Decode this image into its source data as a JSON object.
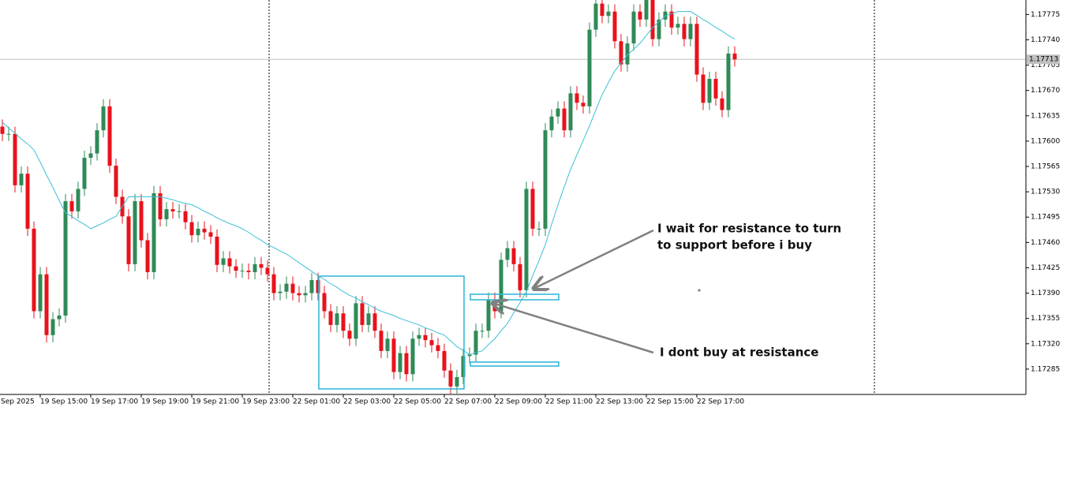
{
  "chart_data": {
    "type": "candlestick",
    "x_start_label": "Sep 2025",
    "categories": [
      null,
      null,
      null,
      null,
      null,
      null,
      "19 Sep 15:00",
      null,
      null,
      null,
      null,
      null,
      null,
      null,
      "19 Sep 17:00",
      null,
      null,
      null,
      null,
      null,
      null,
      null,
      "19 Sep 19:00",
      null,
      null,
      null,
      null,
      null,
      null,
      null,
      "19 Sep 21:00",
      null,
      null,
      null,
      null,
      null,
      null,
      null,
      "19 Sep 23:00",
      null,
      null,
      null,
      null,
      null,
      null,
      null,
      "22 Sep 01:00",
      null,
      null,
      null,
      null,
      null,
      null,
      null,
      "22 Sep 03:00",
      null,
      null,
      null,
      null,
      null,
      null,
      null,
      "22 Sep 05:00",
      null,
      null,
      null,
      null,
      null,
      null,
      null,
      "22 Sep 07:00",
      null,
      null,
      null,
      null,
      null,
      null,
      null,
      "22 Sep 09:00",
      null,
      null,
      null,
      null,
      null,
      null,
      null,
      "22 Sep 11:00",
      null,
      null,
      null,
      null,
      null,
      null,
      null,
      "22 Sep 13:00",
      null,
      null,
      null,
      null,
      null,
      null,
      null,
      "22 Sep 15:00",
      null,
      null,
      null,
      null,
      null,
      null,
      null,
      "22 Sep 17:00",
      null,
      null,
      null,
      null,
      null,
      null
    ],
    "open": [
      1.1762,
      1.1761,
      1.1761,
      1.17539,
      1.17555,
      1.17479,
      1.17365,
      1.17416,
      1.17332,
      1.17354,
      1.17359,
      1.17517,
      1.17503,
      1.17534,
      1.17577,
      1.17583,
      1.17615,
      1.17648,
      1.17566,
      1.17523,
      1.17496,
      1.1743,
      1.17517,
      1.17463,
      1.17419,
      1.17528,
      1.17492,
      1.17506,
      1.17503,
      1.17503,
      1.17488,
      1.1747,
      1.17479,
      1.17474,
      1.17468,
      1.17429,
      1.17438,
      1.17427,
      1.17421,
      1.17421,
      1.17419,
      1.1743,
      1.17425,
      1.17416,
      1.1739,
      1.17392,
      1.17403,
      1.1739,
      1.17387,
      1.1739,
      1.17408,
      1.1739,
      1.17365,
      1.17346,
      1.17362,
      1.17338,
      1.17327,
      1.17376,
      1.17346,
      1.17362,
      1.17338,
      1.1731,
      1.17327,
      1.17281,
      1.17307,
      1.17278,
      1.17327,
      1.17332,
      1.17325,
      1.17318,
      1.1731,
      1.17283,
      1.17261,
      1.17274,
      1.17303,
      1.17305,
      1.17338,
      1.17338,
      1.17381,
      1.17365,
      1.17436,
      1.17452,
      1.1743,
      1.17394,
      1.17534,
      1.17479,
      1.17479,
      1.17615,
      1.17634,
      1.17645,
      1.17615,
      1.17666,
      1.17653,
      1.17648,
      1.17754,
      1.1779,
      1.17773,
      1.17779,
      1.17738,
      1.17706,
      1.17735,
      1.17779,
      1.17768,
      1.17795,
      1.17741,
      1.17768,
      1.17779,
      1.17757,
      1.17762,
      1.17741,
      1.17762,
      1.17692,
      1.17653,
      1.17686,
      1.17659,
      1.17643,
      1.17721
    ],
    "high": [
      1.1763,
      1.1762,
      1.1762,
      1.17565,
      1.17565,
      1.17489,
      1.17426,
      1.17426,
      1.17364,
      1.17369,
      1.17527,
      1.17527,
      1.17544,
      1.17587,
      1.17593,
      1.17625,
      1.17658,
      1.17658,
      1.17576,
      1.17533,
      1.17506,
      1.17527,
      1.17527,
      1.17473,
      1.17538,
      1.17538,
      1.17516,
      1.17516,
      1.17513,
      1.17513,
      1.17498,
      1.17489,
      1.17489,
      1.17484,
      1.17478,
      1.17448,
      1.17448,
      1.17437,
      1.17431,
      1.17431,
      1.1744,
      1.1744,
      1.17435,
      1.17426,
      1.17402,
      1.17413,
      1.17413,
      1.174,
      1.174,
      1.17418,
      1.17418,
      1.174,
      1.17375,
      1.17372,
      1.17372,
      1.17348,
      1.17386,
      1.17386,
      1.17372,
      1.17372,
      1.17348,
      1.17337,
      1.17337,
      1.17317,
      1.17317,
      1.17337,
      1.17342,
      1.17342,
      1.17335,
      1.17328,
      1.1732,
      1.17293,
      1.17284,
      1.17313,
      1.17315,
      1.17348,
      1.17348,
      1.17391,
      1.17391,
      1.17446,
      1.17462,
      1.17462,
      1.1744,
      1.17544,
      1.17544,
      1.17489,
      1.17625,
      1.17644,
      1.17655,
      1.17655,
      1.17676,
      1.17676,
      1.17663,
      1.17764,
      1.178,
      1.178,
      1.17789,
      1.17789,
      1.17748,
      1.17745,
      1.17789,
      1.17789,
      1.17805,
      1.17805,
      1.17778,
      1.17789,
      1.17789,
      1.17772,
      1.17772,
      1.17772,
      1.17772,
      1.17702,
      1.17696,
      1.17696,
      1.17669,
      1.17731,
      1.17731
    ],
    "low": [
      1.176,
      1.176,
      1.17529,
      1.17529,
      1.17469,
      1.17355,
      1.17355,
      1.17322,
      1.17322,
      1.17344,
      1.17349,
      1.17493,
      1.17493,
      1.17524,
      1.17567,
      1.17573,
      1.17605,
      1.17556,
      1.17513,
      1.17486,
      1.1742,
      1.1742,
      1.17453,
      1.17409,
      1.17409,
      1.17482,
      1.17482,
      1.17493,
      1.17493,
      1.17478,
      1.1746,
      1.1746,
      1.17464,
      1.17458,
      1.17419,
      1.17419,
      1.17417,
      1.17411,
      1.17411,
      1.17409,
      1.17409,
      1.17415,
      1.17406,
      1.1738,
      1.1738,
      1.17382,
      1.1738,
      1.17377,
      1.17377,
      1.1738,
      1.1738,
      1.17355,
      1.17336,
      1.17336,
      1.17328,
      1.17317,
      1.17317,
      1.17336,
      1.17336,
      1.17328,
      1.173,
      1.173,
      1.17271,
      1.17271,
      1.17268,
      1.17268,
      1.17317,
      1.17315,
      1.17308,
      1.173,
      1.17273,
      1.17251,
      1.17251,
      1.17264,
      1.17293,
      1.17295,
      1.17328,
      1.17328,
      1.17355,
      1.17355,
      1.17426,
      1.1742,
      1.17384,
      1.17384,
      1.17469,
      1.17469,
      1.17469,
      1.17605,
      1.17624,
      1.17605,
      1.17605,
      1.17643,
      1.17638,
      1.17638,
      1.17744,
      1.17763,
      1.17763,
      1.17728,
      1.17696,
      1.17696,
      1.17725,
      1.17758,
      1.17758,
      1.17731,
      1.17731,
      1.17758,
      1.17747,
      1.17747,
      1.17731,
      1.17731,
      1.17682,
      1.17643,
      1.17643,
      1.17649,
      1.17633,
      1.17633,
      1.17703
    ],
    "close": [
      1.1761,
      1.1761,
      1.17539,
      1.17555,
      1.17479,
      1.17365,
      1.17416,
      1.17332,
      1.17354,
      1.17359,
      1.17517,
      1.17503,
      1.17534,
      1.17577,
      1.17583,
      1.17615,
      1.17648,
      1.17566,
      1.17523,
      1.17496,
      1.1743,
      1.17517,
      1.17463,
      1.17419,
      1.17528,
      1.17492,
      1.17506,
      1.17503,
      1.17503,
      1.17488,
      1.1747,
      1.17479,
      1.17474,
      1.17468,
      1.17429,
      1.17438,
      1.17427,
      1.17421,
      1.17421,
      1.17419,
      1.1743,
      1.17425,
      1.17416,
      1.1739,
      1.17392,
      1.17403,
      1.1739,
      1.17387,
      1.1739,
      1.17408,
      1.1739,
      1.17365,
      1.17346,
      1.17362,
      1.17338,
      1.17327,
      1.17376,
      1.17346,
      1.17362,
      1.17338,
      1.1731,
      1.17327,
      1.17281,
      1.17307,
      1.17278,
      1.17327,
      1.17332,
      1.17325,
      1.17318,
      1.1731,
      1.17283,
      1.17261,
      1.17274,
      1.17303,
      1.17305,
      1.17338,
      1.17338,
      1.17381,
      1.17365,
      1.17436,
      1.17452,
      1.1743,
      1.17394,
      1.17534,
      1.17479,
      1.17479,
      1.17615,
      1.17634,
      1.17645,
      1.17615,
      1.17666,
      1.17653,
      1.17648,
      1.17754,
      1.1779,
      1.17773,
      1.17779,
      1.17738,
      1.17706,
      1.17735,
      1.17779,
      1.17768,
      1.17795,
      1.17741,
      1.17768,
      1.17779,
      1.17757,
      1.17762,
      1.17741,
      1.17762,
      1.17692,
      1.17653,
      1.17686,
      1.17659,
      1.17643,
      1.17721,
      1.17713
    ],
    "up_color": "#2f8a57",
    "down_color": "#e8121b",
    "moving_average": {
      "color": "#3dbfd8",
      "values": [
        1.17626,
        1.17618,
        1.17611,
        1.17603,
        1.17596,
        1.17588,
        1.17571,
        1.17553,
        1.17536,
        1.17518,
        1.17501,
        1.17496,
        1.1749,
        1.17485,
        1.17479,
        1.17483,
        1.17487,
        1.17492,
        1.17496,
        1.1751,
        1.17523,
        1.17523,
        1.17523,
        1.17523,
        1.17523,
        1.17523,
        1.17521,
        1.17519,
        1.17516,
        1.17514,
        1.17512,
        1.17508,
        1.17503,
        1.17499,
        1.17494,
        1.1749,
        1.17486,
        1.17483,
        1.17479,
        1.17474,
        1.17468,
        1.17463,
        1.17457,
        1.17453,
        1.17448,
        1.17444,
        1.17438,
        1.17432,
        1.17426,
        1.1742,
        1.17414,
        1.17409,
        1.17403,
        1.17398,
        1.17392,
        1.17387,
        1.17383,
        1.17378,
        1.17374,
        1.17369,
        1.17365,
        1.17362,
        1.17359,
        1.17355,
        1.17352,
        1.17349,
        1.17346,
        1.17342,
        1.17339,
        1.17335,
        1.17332,
        1.17324,
        1.17316,
        1.17311,
        1.17305,
        1.17308,
        1.1731,
        1.17319,
        1.17327,
        1.17338,
        1.17348,
        1.17363,
        1.17377,
        1.17392,
        1.17414,
        1.17435,
        1.17457,
        1.17485,
        1.17512,
        1.17537,
        1.17561,
        1.17581,
        1.17601,
        1.17621,
        1.17643,
        1.17664,
        1.17681,
        1.17697,
        1.17708,
        1.17719,
        1.17727,
        1.17735,
        1.17746,
        1.17757,
        1.17765,
        1.17773,
        1.17776,
        1.17779,
        1.17779,
        1.17779,
        1.17774,
        1.17768,
        1.17763,
        1.17757,
        1.17752,
        1.17746,
        1.17741
      ]
    },
    "current_price": 1.17713,
    "ylim": [
      1.1725,
      1.17795
    ],
    "yticks": [
      1.17285,
      {
        "value": 1.1732,
        "label": "1.17320"
      },
      1.17355,
      {
        "value": 1.1739,
        "label": "1.17390"
      },
      1.17425,
      {
        "value": 1.1746,
        "label": "1.17460"
      },
      1.17495,
      {
        "value": 1.1753,
        "label": "1.17530"
      },
      1.17565,
      {
        "value": 1.176,
        "label": "1.17600"
      },
      1.17635,
      {
        "value": 1.1767,
        "label": "1.17670"
      },
      1.17705,
      {
        "value": 1.1774,
        "label": "1.17740"
      },
      1.17775
    ],
    "annotations": [
      {
        "lines": [
          "I wait for resistance to turn",
          "to support before i buy"
        ]
      },
      {
        "lines": [
          "I dont buy at resistance"
        ]
      }
    ]
  }
}
